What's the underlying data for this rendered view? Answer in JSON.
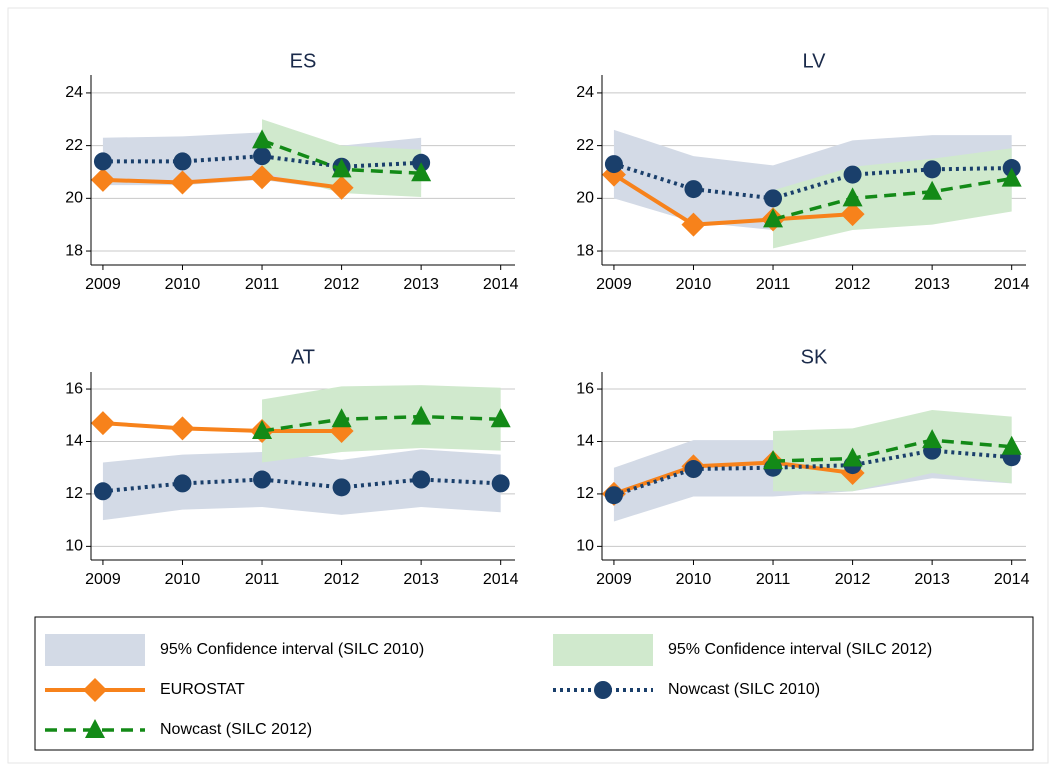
{
  "chart_data": [
    {
      "type": "line",
      "title": "ES",
      "x": [
        2009,
        2010,
        2011,
        2012,
        2013,
        2014
      ],
      "xlim": [
        2008.85,
        2014.18
      ],
      "xticks": [
        2009,
        2010,
        2011,
        2012,
        2013,
        2014
      ],
      "ylim": [
        17.47,
        24.68
      ],
      "yticks": [
        18,
        20,
        22,
        24
      ],
      "grid": true,
      "bands": [
        {
          "lower": [
            20.5,
            20.5,
            20.7,
            20.3,
            20.3,
            null
          ],
          "upper": [
            22.3,
            22.35,
            22.5,
            22.0,
            22.3,
            null
          ]
        },
        {
          "lower": [
            null,
            null,
            21.0,
            20.2,
            20.05,
            null
          ],
          "upper": [
            null,
            null,
            23.0,
            22.0,
            21.85,
            null
          ]
        }
      ],
      "series": [
        {
          "values": [
            20.7,
            20.6,
            20.8,
            20.4,
            null,
            null
          ]
        },
        {
          "values": [
            21.4,
            21.4,
            21.6,
            21.2,
            21.35,
            null
          ]
        },
        {
          "values": [
            null,
            null,
            22.2,
            21.1,
            20.95,
            null
          ]
        }
      ]
    },
    {
      "type": "line",
      "title": "LV",
      "x": [
        2009,
        2010,
        2011,
        2012,
        2013,
        2014
      ],
      "xlim": [
        2008.85,
        2014.18
      ],
      "xticks": [
        2009,
        2010,
        2011,
        2012,
        2013,
        2014
      ],
      "ylim": [
        17.47,
        24.68
      ],
      "yticks": [
        18,
        20,
        22,
        24
      ],
      "grid": true,
      "bands": [
        {
          "lower": [
            20.0,
            19.1,
            18.8,
            19.7,
            19.9,
            20.0
          ],
          "upper": [
            22.6,
            21.6,
            21.25,
            22.2,
            22.4,
            22.4
          ]
        },
        {
          "lower": [
            null,
            null,
            18.1,
            18.8,
            19.0,
            19.5
          ],
          "upper": [
            null,
            null,
            20.3,
            21.2,
            21.5,
            21.9
          ]
        }
      ],
      "series": [
        {
          "values": [
            20.9,
            19.0,
            19.2,
            19.4,
            null,
            null
          ]
        },
        {
          "values": [
            21.3,
            20.35,
            20.0,
            20.9,
            21.1,
            21.15
          ]
        },
        {
          "values": [
            null,
            null,
            19.2,
            20.0,
            20.25,
            20.75
          ]
        }
      ]
    },
    {
      "type": "line",
      "title": "AT",
      "x": [
        2009,
        2010,
        2011,
        2012,
        2013,
        2014
      ],
      "xlim": [
        2008.85,
        2014.18
      ],
      "xticks": [
        2009,
        2010,
        2011,
        2012,
        2013,
        2014
      ],
      "ylim": [
        9.48,
        16.65
      ],
      "yticks": [
        10,
        12,
        14,
        16
      ],
      "grid": true,
      "bands": [
        {
          "lower": [
            11.0,
            11.4,
            11.5,
            11.2,
            11.5,
            11.3
          ],
          "upper": [
            13.2,
            13.5,
            13.6,
            13.3,
            13.7,
            13.5
          ]
        },
        {
          "lower": [
            null,
            null,
            13.2,
            13.6,
            13.75,
            13.65
          ],
          "upper": [
            null,
            null,
            15.6,
            16.1,
            16.15,
            16.05
          ]
        }
      ],
      "series": [
        {
          "values": [
            14.7,
            14.5,
            14.4,
            14.4,
            null,
            null
          ]
        },
        {
          "values": [
            12.1,
            12.4,
            12.55,
            12.25,
            12.55,
            12.4
          ]
        },
        {
          "values": [
            null,
            null,
            14.4,
            14.85,
            14.95,
            14.85
          ]
        }
      ]
    },
    {
      "type": "line",
      "title": "SK",
      "x": [
        2009,
        2010,
        2011,
        2012,
        2013,
        2014
      ],
      "xlim": [
        2008.85,
        2014.18
      ],
      "xticks": [
        2009,
        2010,
        2011,
        2012,
        2013,
        2014
      ],
      "ylim": [
        9.48,
        16.65
      ],
      "yticks": [
        10,
        12,
        14,
        16
      ],
      "grid": true,
      "bands": [
        {
          "lower": [
            10.95,
            11.9,
            11.9,
            12.1,
            12.6,
            12.4
          ],
          "upper": [
            13.0,
            14.05,
            14.05,
            14.0,
            14.3,
            14.2
          ]
        },
        {
          "lower": [
            null,
            null,
            12.1,
            12.1,
            12.8,
            12.4
          ],
          "upper": [
            null,
            null,
            14.4,
            14.5,
            15.2,
            14.95
          ]
        }
      ],
      "series": [
        {
          "values": [
            12.0,
            13.05,
            13.2,
            12.8,
            null,
            null
          ]
        },
        {
          "values": [
            11.95,
            12.95,
            13.0,
            13.1,
            13.65,
            13.4
          ]
        },
        {
          "values": [
            null,
            null,
            13.25,
            13.35,
            14.05,
            13.8
          ]
        }
      ]
    }
  ],
  "legend": {
    "bands": [
      {
        "name": "95% Confidence interval (SILC 2010)",
        "color": "#d3dae6"
      },
      {
        "name": "95% Confidence interval (SILC 2012)",
        "color": "#d0e9cd"
      }
    ],
    "series": [
      {
        "name": "EUROSTAT",
        "color": "#f7821b",
        "marker": "diamond",
        "dash": "solid"
      },
      {
        "name": "Nowcast (SILC 2010)",
        "color": "#1a3f6b",
        "marker": "circle",
        "dash": "dot"
      },
      {
        "name": "Nowcast (SILC 2012)",
        "color": "#138a17",
        "marker": "triangle",
        "dash": "dash"
      }
    ]
  }
}
